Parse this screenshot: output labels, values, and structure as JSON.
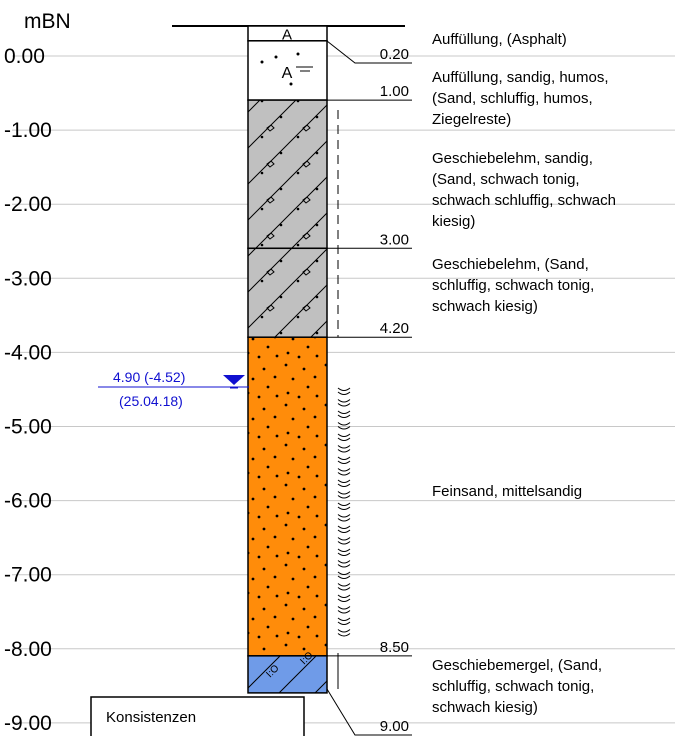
{
  "unit_label": "mBN",
  "elevation_ticks": [
    "0.00",
    "-1.00",
    "-2.00",
    "-3.00",
    "-4.00",
    "-5.00",
    "-6.00",
    "-7.00",
    "-8.00",
    "-9.00"
  ],
  "layer_symbols": {
    "fill_marker": "A"
  },
  "layers": [
    {
      "top_depth": 0.0,
      "bottom_depth": 0.2,
      "pattern": "asphalt",
      "color": "#ffffff"
    },
    {
      "top_depth": 0.2,
      "bottom_depth": 1.0,
      "pattern": "fill",
      "color": "#ffffff"
    },
    {
      "top_depth": 1.0,
      "bottom_depth": 3.0,
      "pattern": "till",
      "color": "#c0c0c0"
    },
    {
      "top_depth": 3.0,
      "bottom_depth": 4.2,
      "pattern": "till",
      "color": "#c0c0c0"
    },
    {
      "top_depth": 4.2,
      "bottom_depth": 8.5,
      "pattern": "sand",
      "color": "#ff8c0a"
    },
    {
      "top_depth": 8.5,
      "bottom_depth": 9.0,
      "pattern": "marl",
      "color": "#6f9be8"
    }
  ],
  "depth_labels": [
    {
      "text": "0.20",
      "depth": 0.2
    },
    {
      "text": "1.00",
      "depth": 1.0
    },
    {
      "text": "3.00",
      "depth": 3.0
    },
    {
      "text": "4.20",
      "depth": 4.2
    },
    {
      "text": "8.50",
      "depth": 8.5
    },
    {
      "text": "9.00",
      "depth": 9.0
    }
  ],
  "descriptions": [
    {
      "lines": [
        "Auffüllung, (Asphalt)"
      ]
    },
    {
      "lines": [
        "Auffüllung, sandig, humos,",
        "(Sand, schluffig, humos,",
        "Ziegelreste)"
      ]
    },
    {
      "lines": [
        "Geschiebelehm, sandig,",
        "(Sand, schwach tonig,",
        "schwach schluffig, schwach",
        "kiesig)"
      ]
    },
    {
      "lines": [
        "Geschiebelehm, (Sand,",
        "schluffig, schwach tonig,",
        "schwach kiesig)"
      ]
    },
    {
      "lines": [
        "Feinsand, mittelsandig"
      ]
    },
    {
      "lines": [
        "Geschiebemergel, (Sand,",
        "schluffig, schwach tonig,",
        "schwach kiesig)"
      ]
    }
  ],
  "groundwater": {
    "depth_text": "4.90 (-4.52)",
    "date_text": "(25.04.18)",
    "depth": 4.9,
    "color": "#1010d0"
  },
  "legend_box": {
    "title": "Konsistenzen"
  },
  "colors": {
    "gridline": "#c8c8c8",
    "outline": "#000000",
    "till": "#c0c0c0",
    "sand": "#ff8c0a",
    "marl": "#6f9be8"
  }
}
